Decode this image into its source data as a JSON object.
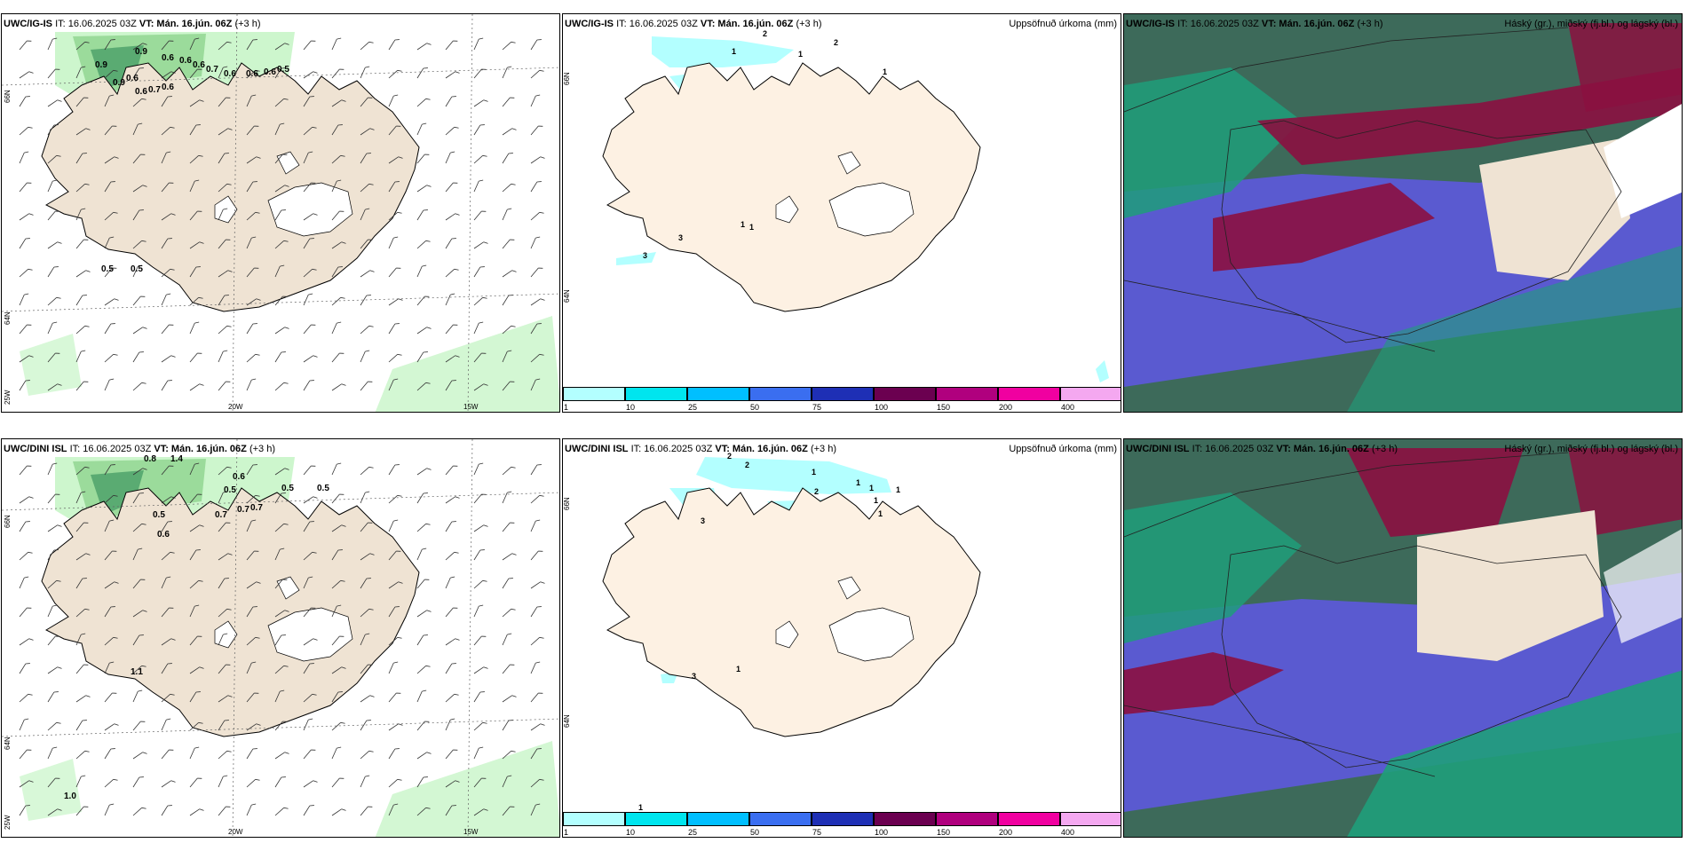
{
  "panels": [
    {
      "model": "UWC/IG-IS",
      "it": "IT: 16.06.2025 03Z",
      "vt_label": "VT:",
      "vt": "Mán. 16.jún. 06Z",
      "lead": "(+3 h)",
      "right_title": ""
    },
    {
      "model": "UWC/IG-IS",
      "it": "IT: 16.06.2025 03Z",
      "vt_label": "VT:",
      "vt": "Mán. 16.jún. 06Z",
      "lead": "(+3 h)",
      "right_title": "Uppsöfnuð úrkoma (mm)"
    },
    {
      "model": "UWC/IG-IS",
      "it": "IT: 16.06.2025 03Z",
      "vt_label": "VT:",
      "vt": "Mán. 16.jún. 06Z",
      "lead": "(+3 h)",
      "right_title": "Háský (gr.), miðský (fj.bl.) og lágský (bl.)"
    },
    {
      "model": "UWC/DINI ISL",
      "it": "IT: 16.06.2025 03Z",
      "vt_label": "VT:",
      "vt": "Mán. 16.jún. 06Z",
      "lead": "(+3 h)",
      "right_title": ""
    },
    {
      "model": "UWC/DINI ISL",
      "it": "IT: 16.06.2025 03Z",
      "vt_label": "VT:",
      "vt": "Mán. 16.jún. 06Z",
      "lead": "(+3 h)",
      "right_title": "Uppsöfnuð úrkoma (mm)"
    },
    {
      "model": "UWC/DINI ISL",
      "it": "IT: 16.06.2025 03Z",
      "vt_label": "VT:",
      "vt": "Mán. 16.jún. 06Z",
      "lead": "(+3 h)",
      "right_title": "Háský (gr.), miðský (fj.bl.) og lágský (bl.)"
    }
  ],
  "axes": {
    "lat_top": "66N",
    "lat_bottom": "64N",
    "lon_left": "25W",
    "lon_mid": "20W",
    "lon_right": "15W",
    "lat_right_top": "66N",
    "lat_right_bottom": "64N"
  },
  "precip_legend": {
    "labels": [
      "1",
      "10",
      "25",
      "50",
      "75",
      "100",
      "150",
      "200",
      "400"
    ],
    "colors": [
      "#b3ffff",
      "#00e5ee",
      "#00bfff",
      "#3a6ef0",
      "#1e2fb5",
      "#6b0050",
      "#b0007e",
      "#f000a0",
      "#f4a8f0"
    ]
  },
  "colors": {
    "land": "#efe3d3",
    "land_precip": "#fdf1e3",
    "precip_light": "#b3ffff",
    "fog_light": "#c8f5c8",
    "fog_dark": "#2e8b57",
    "high_cloud": "#1f9e7a",
    "mid_cloud": "#5a5ad0",
    "low_cloud": "#8b1040"
  },
  "wind_values_top": [
    "0.9",
    "0.9",
    "0.6",
    "0.6",
    "0.6",
    "0.7",
    "0.6",
    "0.6",
    "0.6",
    "0.5",
    "0.9",
    "0.6",
    "0.6",
    "0.7",
    "0.6",
    "0.5",
    "0.5"
  ],
  "wind_values_bottom": [
    "0.8",
    "1.4",
    "0.6",
    "0.5",
    "0.5",
    "0.5",
    "0.7",
    "0.7",
    "0.7",
    "0.5",
    "0.6",
    "1.1",
    "1.0"
  ],
  "precip_values_top": [
    "2",
    "1",
    "2",
    "1",
    "1",
    "3",
    "3",
    "1",
    "1"
  ],
  "precip_values_bottom": [
    "2",
    "2",
    "1",
    "1",
    "1",
    "1",
    "2",
    "1",
    "1",
    "3",
    "3",
    "1",
    "1"
  ]
}
